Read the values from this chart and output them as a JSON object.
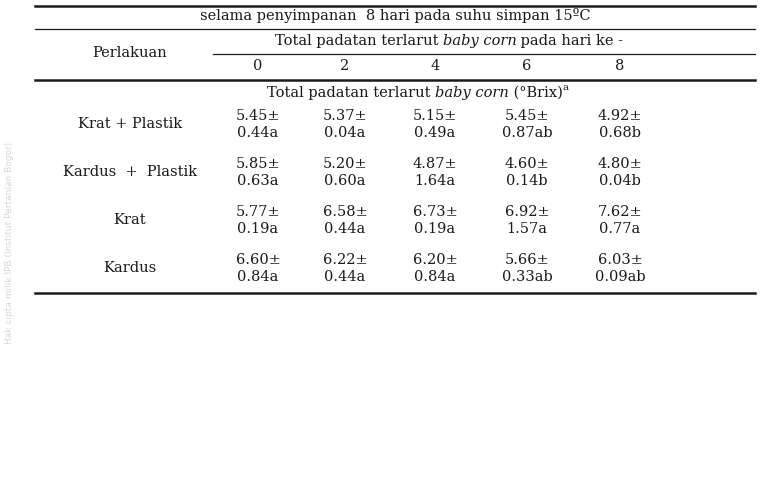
{
  "title_top": "selama penyimpanan  8 hari pada suhu simpan 15ºC",
  "col_days": [
    "0",
    "2",
    "4",
    "6",
    "8"
  ],
  "row_label_col": "Perlakuan",
  "rows": [
    {
      "label": "Krat + Plastik",
      "line1": [
        "5.45±",
        "5.37±",
        "5.15±",
        "5.45±",
        "4.92±"
      ],
      "line2": [
        "0.44a",
        "0.04a",
        "0.49a",
        "0.87ab",
        "0.68b"
      ]
    },
    {
      "label": "Kardus  +  Plastik",
      "line1": [
        "5.85±",
        "5.20±",
        "4.87±",
        "4.60±",
        "4.80±"
      ],
      "line2": [
        "0.63a",
        "0.60a",
        "1.64a",
        "0.14b",
        "0.04b"
      ]
    },
    {
      "label": "Krat",
      "line1": [
        "5.77±",
        "6.58±",
        "6.73±",
        "6.92±",
        "7.62±"
      ],
      "line2": [
        "0.19a",
        "0.44a",
        "0.19a",
        "1.57a",
        "0.77a"
      ]
    },
    {
      "label": "Kardus",
      "line1": [
        "6.60±",
        "6.22±",
        "6.20±",
        "5.66±",
        "6.03±"
      ],
      "line2": [
        "0.84a",
        "0.44a",
        "0.84a",
        "0.33ab",
        "0.09ab"
      ]
    }
  ],
  "bg_color": "#ffffff",
  "text_color": "#1a1a1a",
  "watermark_color": "#cccccc",
  "font_size": 10.5,
  "watermark_text": "Hak cipta milik IPB (Institut Pertanian Bogor)"
}
